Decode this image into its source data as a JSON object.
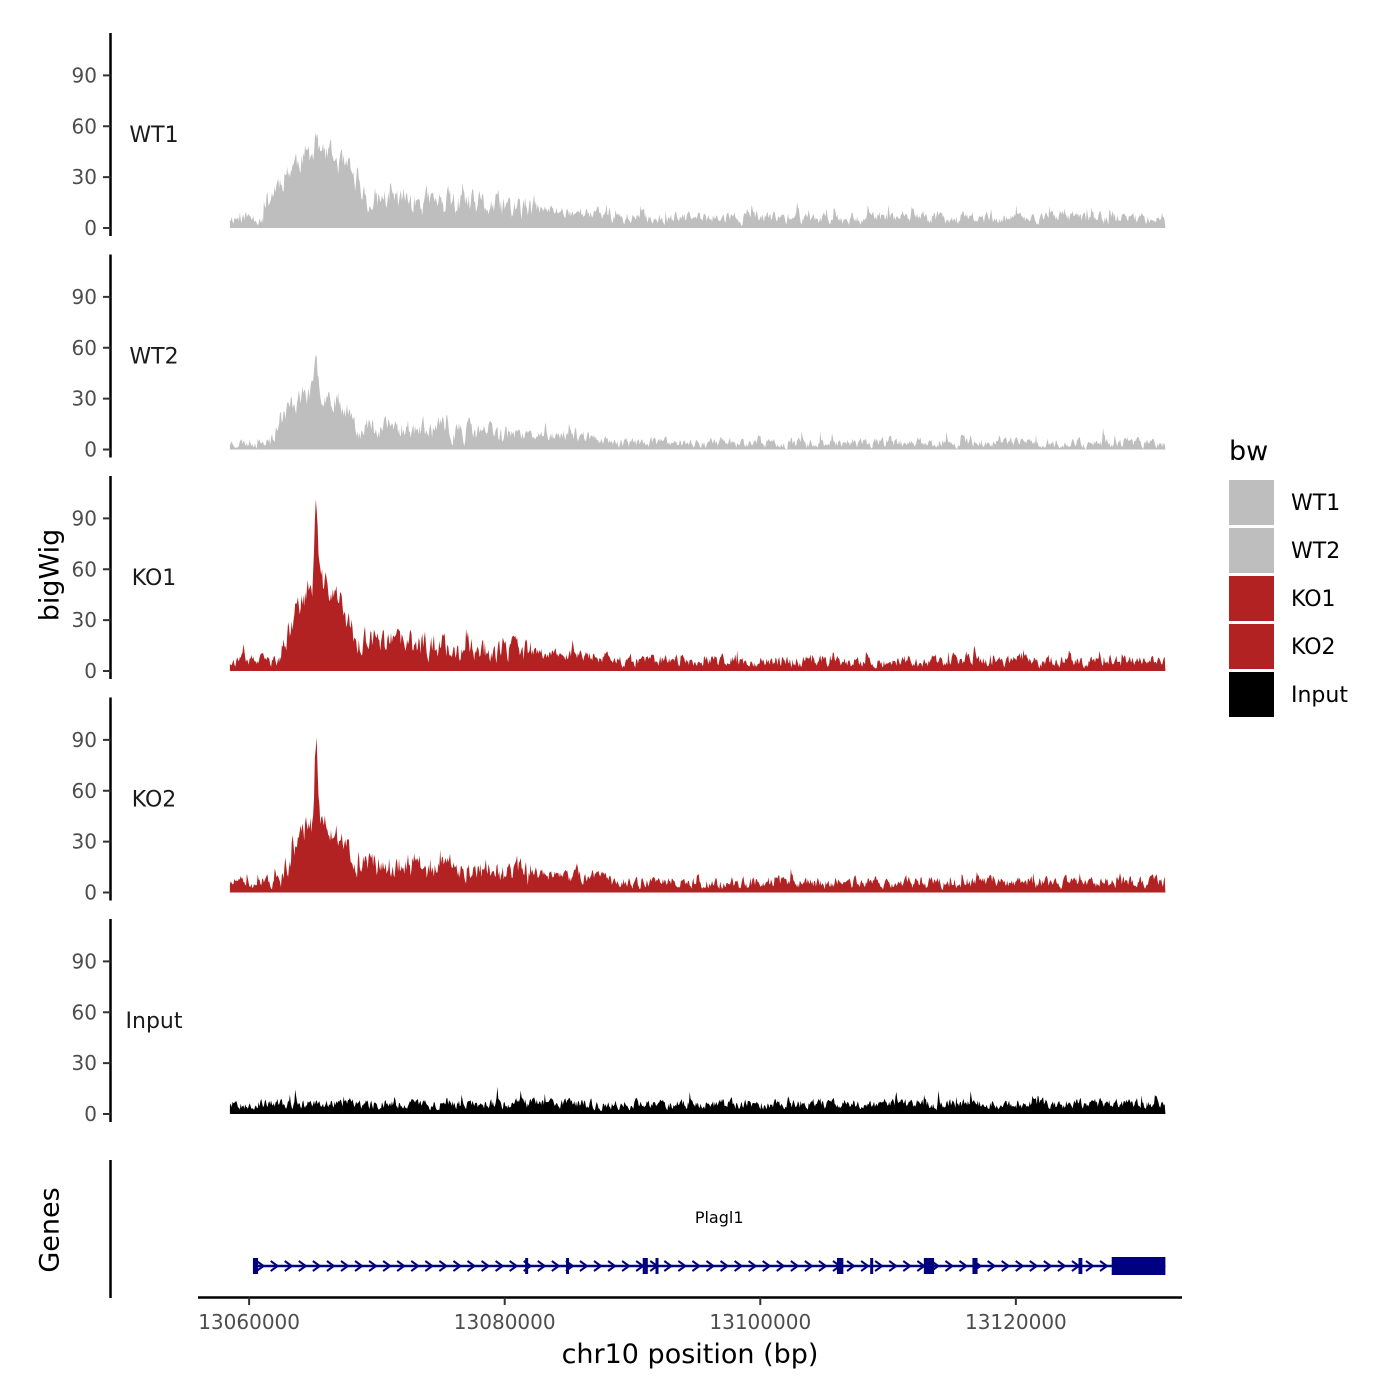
{
  "chart_data": {
    "type": "area",
    "ylabel": "bigWig",
    "xlabel": "chr10 position (bp)",
    "ylim": [
      0,
      115
    ],
    "yticks": [
      0,
      30,
      60,
      90
    ],
    "xlim": [
      13056000,
      13133000
    ],
    "xticks": [
      13060000,
      13080000,
      13100000,
      13120000
    ],
    "xtick_labels": [
      "13060000",
      "13080000",
      "13100000",
      "13120000"
    ],
    "x_start": 13058500,
    "x_end": 13131700,
    "genes_label": "Genes",
    "legend": {
      "title": "bw",
      "entries": [
        {
          "name": "WT1",
          "color": "#bebebe"
        },
        {
          "name": "WT2",
          "color": "#bebebe"
        },
        {
          "name": "KO1",
          "color": "#b22222"
        },
        {
          "name": "KO2",
          "color": "#b22222"
        },
        {
          "name": "Input",
          "color": "#000000"
        }
      ]
    },
    "tracks": [
      {
        "name": "WT1",
        "color": "#bebebe",
        "baseline": 6,
        "noise": 6,
        "hot_start": 13061000,
        "hot_end": 13069500,
        "hot_level": 38,
        "peak_pos": 13065200,
        "peak_value": 60,
        "peak_width": 300,
        "tail_end": 13088000,
        "tail_level": 10,
        "seed": 11
      },
      {
        "name": "WT2",
        "color": "#bebebe",
        "baseline": 4,
        "noise": 5,
        "hot_start": 13061500,
        "hot_end": 13069000,
        "hot_level": 30,
        "peak_pos": 13065200,
        "peak_value": 54,
        "peak_width": 300,
        "tail_end": 13088000,
        "tail_level": 8,
        "seed": 23
      },
      {
        "name": "KO1",
        "color": "#b22222",
        "baseline": 6,
        "noise": 6,
        "hot_start": 13062500,
        "hot_end": 13068500,
        "hot_level": 45,
        "peak_pos": 13065200,
        "peak_value": 108,
        "peak_width": 250,
        "tail_end": 13088000,
        "tail_level": 10,
        "seed": 37
      },
      {
        "name": "KO2",
        "color": "#b22222",
        "baseline": 6,
        "noise": 6,
        "hot_start": 13062500,
        "hot_end": 13068500,
        "hot_level": 35,
        "peak_pos": 13065200,
        "peak_value": 97,
        "peak_width": 250,
        "tail_end": 13088000,
        "tail_level": 10,
        "seed": 51
      },
      {
        "name": "Input",
        "color": "#000000",
        "baseline": 6,
        "noise": 5,
        "hot_start": 0,
        "hot_end": 0,
        "hot_level": 0,
        "peak_pos": 0,
        "peak_value": 0,
        "peak_width": 1,
        "tail_end": 0,
        "tail_level": 0,
        "seed": 67
      }
    ],
    "gene": {
      "name": "Plagl1",
      "color": "#000080",
      "start": 13060300,
      "end": 13131700,
      "strand": "+",
      "exons": [
        [
          13060300,
          13060700
        ],
        [
          13081600,
          13081700
        ],
        [
          13084800,
          13084900
        ],
        [
          13090800,
          13091200
        ],
        [
          13091800,
          13091900
        ],
        [
          13106000,
          13106500
        ],
        [
          13108600,
          13108700
        ],
        [
          13112800,
          13113600
        ],
        [
          13116600,
          13117000
        ],
        [
          13124900,
          13125200
        ],
        [
          13127500,
          13131700
        ]
      ]
    }
  }
}
